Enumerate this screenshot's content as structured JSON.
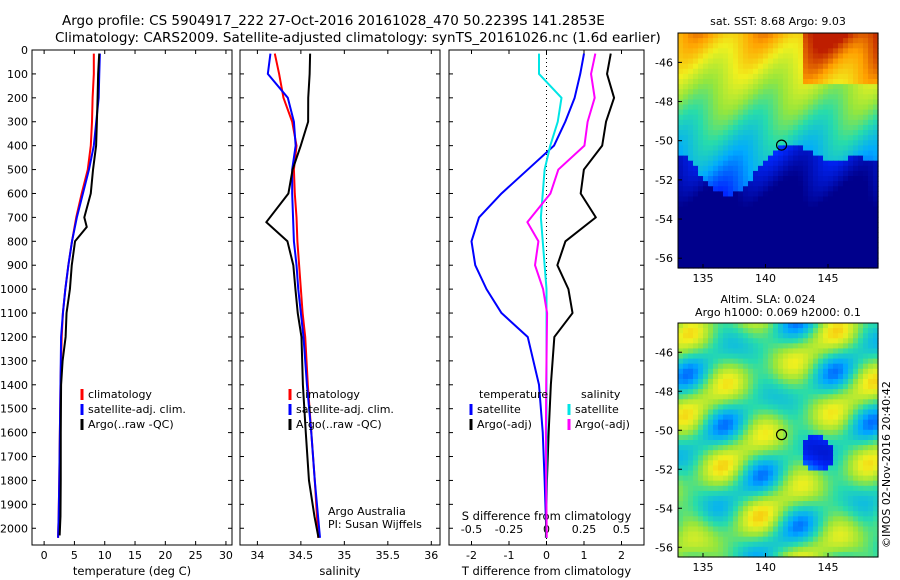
{
  "header": {
    "line1": "Argo profile: CS 5904917_222 27-Oct-2016 20161028_470 50.2239S 141.2853E",
    "line2": "Climatology: CARS2009. Satellite-adjusted climatology: synTS_20161026.nc (1.6d earlier)"
  },
  "colors": {
    "climatology": "#ff0000",
    "satellite": "#0000ff",
    "argo": "#000000",
    "satellite_diff": "#00e5e5",
    "argo_adj_diff": "#ff00ff"
  },
  "credit": "©IMOS 02-Nov-2016 20:40:42",
  "chart_data": [
    {
      "type": "line",
      "ylabel": "",
      "xlabel": "temperature (deg C)",
      "xlim": [
        -2,
        31
      ],
      "ylim": [
        2070,
        0
      ],
      "xticks": [
        "0",
        "5",
        "10",
        "15",
        "20",
        "25",
        "30"
      ],
      "yticks": [
        "0",
        "100",
        "200",
        "300",
        "400",
        "500",
        "600",
        "700",
        "800",
        "900",
        "1000",
        "1100",
        "1200",
        "1300",
        "1400",
        "1500",
        "1600",
        "1700",
        "1800",
        "1900",
        "2000"
      ],
      "legend": [
        "climatology",
        "satellite-adj. clim.",
        "Argo(..raw -QC)"
      ],
      "series": [
        {
          "name": "climatology",
          "color_key": "climatology",
          "x": [
            8.2,
            8.2,
            8.0,
            7.9,
            7.7,
            7.2,
            6.2,
            5.3,
            4.6,
            4.0,
            3.5,
            3.1,
            2.9,
            2.7,
            2.6,
            2.5,
            2.4,
            2.3
          ],
          "y": [
            15,
            100,
            200,
            300,
            400,
            500,
            600,
            700,
            800,
            900,
            1000,
            1100,
            1200,
            1400,
            1600,
            1800,
            1950,
            2040
          ]
        },
        {
          "name": "satellite-adj. clim.",
          "color_key": "satellite",
          "x": [
            9.2,
            9.1,
            9.0,
            8.6,
            8.2,
            7.4,
            6.4,
            5.4,
            4.6,
            4.0,
            3.5,
            3.1,
            2.8,
            2.7,
            2.6,
            2.5,
            2.4,
            2.3
          ],
          "y": [
            15,
            100,
            200,
            300,
            400,
            500,
            600,
            700,
            800,
            900,
            1000,
            1100,
            1200,
            1400,
            1600,
            1800,
            1950,
            2040
          ]
        },
        {
          "name": "Argo(..raw -QC)",
          "color_key": "argo",
          "x": [
            9.0,
            8.9,
            8.9,
            8.8,
            8.6,
            8.0,
            7.6,
            6.6,
            7.1,
            5.2,
            4.6,
            4.2,
            3.6,
            3.5,
            3.1,
            2.9,
            2.8,
            2.7,
            2.6,
            2.5
          ],
          "y": [
            15,
            100,
            200,
            300,
            400,
            500,
            600,
            700,
            740,
            800,
            900,
            1000,
            1100,
            1200,
            1300,
            1400,
            1600,
            1800,
            1950,
            2030
          ]
        }
      ]
    },
    {
      "type": "line",
      "xlabel": "salinity",
      "xlim": [
        33.8,
        36.1
      ],
      "ylim": [
        2070,
        0
      ],
      "xticks": [
        "34",
        "34.5",
        "35",
        "35.5",
        "36"
      ],
      "legend": [
        "climatology",
        "satellite-adj. clim.",
        "Argo(..raw -QC)"
      ],
      "annotation": [
        "Argo Australia",
        "PI: Susan Wijffels"
      ],
      "series": [
        {
          "name": "climatology",
          "color_key": "climatology",
          "x": [
            34.2,
            34.25,
            34.3,
            34.4,
            34.45,
            34.42,
            34.43,
            34.45,
            34.46,
            34.48,
            34.5,
            34.52,
            34.55,
            34.58,
            34.62,
            34.66,
            34.7
          ],
          "y": [
            15,
            100,
            200,
            300,
            400,
            500,
            600,
            700,
            800,
            900,
            1000,
            1100,
            1200,
            1400,
            1600,
            1800,
            2040
          ]
        },
        {
          "name": "satellite-adj. clim.",
          "color_key": "satellite",
          "x": [
            34.15,
            34.12,
            34.35,
            34.42,
            34.44,
            34.4,
            34.4,
            34.41,
            34.42,
            34.45,
            34.47,
            34.5,
            34.53,
            34.57,
            34.62,
            34.66,
            34.72
          ],
          "y": [
            15,
            100,
            200,
            300,
            400,
            500,
            600,
            700,
            800,
            900,
            1000,
            1100,
            1200,
            1400,
            1600,
            1800,
            2040
          ]
        },
        {
          "name": "Argo(..raw -QC)",
          "color_key": "argo",
          "x": [
            34.6,
            34.6,
            34.59,
            34.59,
            34.5,
            34.4,
            34.35,
            34.1,
            34.35,
            34.42,
            34.44,
            34.46,
            34.5,
            34.52,
            34.56,
            34.6,
            34.66,
            34.7
          ],
          "y": [
            15,
            100,
            200,
            300,
            400,
            500,
            600,
            720,
            800,
            900,
            1000,
            1100,
            1200,
            1400,
            1600,
            1800,
            1950,
            2040
          ]
        }
      ]
    },
    {
      "type": "line",
      "xlabel": "T difference from climatology",
      "xlabel_top": "S difference from climatology",
      "xlim": [
        -2.6,
        2.6
      ],
      "ylim": [
        2070,
        0
      ],
      "xticks": [
        "-2",
        "-1",
        "0",
        "1",
        "2"
      ],
      "xticks_top": [
        "-0.5",
        "-0.25",
        "0",
        "0.25",
        "0.5"
      ],
      "legend_temperature": [
        "temperature",
        "satellite",
        "Argo(-adj)"
      ],
      "legend_salinity": [
        "salinity",
        "satellite",
        "Argo(-adj)"
      ],
      "series": [
        {
          "name": "temperature satellite",
          "color_key": "satellite",
          "x": [
            1.0,
            0.9,
            0.75,
            0.5,
            0.2,
            -0.5,
            -1.2,
            -1.8,
            -2.0,
            -1.9,
            -1.6,
            -1.2,
            -0.5,
            -0.2,
            -0.1,
            -0.05,
            0.0
          ],
          "y": [
            15,
            100,
            200,
            300,
            400,
            500,
            600,
            700,
            800,
            900,
            1000,
            1100,
            1200,
            1400,
            1600,
            1800,
            2040
          ]
        },
        {
          "name": "temperature Argo(-adj)",
          "color_key": "argo",
          "x": [
            1.7,
            1.6,
            1.8,
            1.6,
            1.5,
            1.0,
            0.9,
            1.3,
            0.5,
            0.3,
            0.6,
            0.7,
            0.2,
            0.1,
            0.05,
            0.02,
            0.0
          ],
          "y": [
            15,
            100,
            200,
            300,
            400,
            500,
            600,
            700,
            800,
            900,
            1000,
            1100,
            1200,
            1400,
            1600,
            1800,
            2040
          ]
        },
        {
          "name": "salinity satellite",
          "color_key": "satellite_diff",
          "x": [
            -0.2,
            -0.2,
            0.4,
            0.3,
            0.1,
            -0.05,
            -0.1,
            -0.15,
            -0.1,
            -0.05,
            0.0,
            0.0,
            0.0,
            0.0,
            0.0,
            0.0,
            0.0
          ],
          "y": [
            15,
            100,
            200,
            300,
            400,
            500,
            600,
            700,
            800,
            900,
            1000,
            1100,
            1200,
            1400,
            1600,
            1800,
            2040
          ]
        },
        {
          "name": "salinity Argo(-adj)",
          "color_key": "argo_adj_diff",
          "x": [
            1.3,
            1.2,
            1.3,
            1.1,
            1.0,
            0.3,
            0.1,
            -0.5,
            -0.2,
            -0.3,
            -0.1,
            0.0,
            0.0,
            0.0,
            0.0,
            0.0,
            0.0
          ],
          "y": [
            15,
            100,
            200,
            300,
            400,
            500,
            600,
            720,
            800,
            900,
            1000,
            1100,
            1200,
            1400,
            1600,
            1800,
            2040
          ]
        }
      ]
    },
    {
      "type": "heatmap",
      "title": "sat. SST: 8.68  Argo: 9.03",
      "xlim": [
        133,
        149
      ],
      "ylim": [
        -56.5,
        -44.5
      ],
      "xticks": [
        "135",
        "140",
        "145"
      ],
      "yticks": [
        "-46",
        "-48",
        "-50",
        "-52",
        "-54",
        "-56"
      ],
      "marker": {
        "lon": 141.2853,
        "lat": -50.2239
      }
    },
    {
      "type": "heatmap",
      "title": "Altim. SLA: 0.024",
      "subtitle": "Argo h1000: 0.069 h2000: 0.1",
      "xlim": [
        133,
        149
      ],
      "ylim": [
        -56.5,
        -44.5
      ],
      "xticks": [
        "135",
        "140",
        "145"
      ],
      "yticks": [
        "-46",
        "-48",
        "-50",
        "-52",
        "-54",
        "-56"
      ],
      "marker": {
        "lon": 141.2853,
        "lat": -50.2239
      }
    }
  ]
}
